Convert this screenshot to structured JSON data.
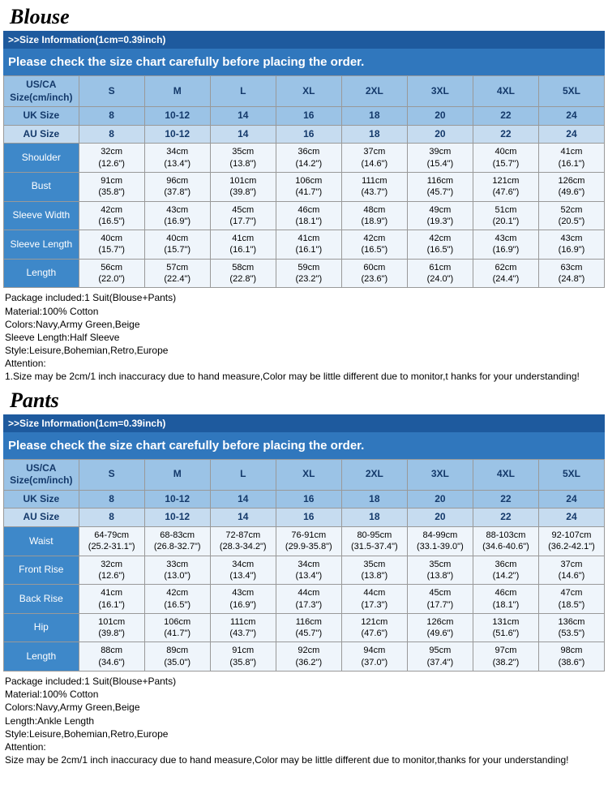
{
  "blouse": {
    "title": "Blouse",
    "info_header": ">>Size Information(1cm=0.39inch)",
    "instruction": "Please check the size chart carefully before placing the order.",
    "header_rows": {
      "usca_label": "US/CA Size(cm/inch)",
      "uk_label": "UK Size",
      "au_label": "AU Size",
      "sizes": [
        "S",
        "M",
        "L",
        "XL",
        "2XL",
        "3XL",
        "4XL",
        "5XL"
      ],
      "uk": [
        "8",
        "10-12",
        "14",
        "16",
        "18",
        "20",
        "22",
        "24"
      ],
      "au": [
        "8",
        "10-12",
        "14",
        "16",
        "18",
        "20",
        "22",
        "24"
      ]
    },
    "measurements": [
      {
        "label": "Shoulder",
        "vals": [
          "32cm (12.6\")",
          "34cm (13.4\")",
          "35cm (13.8\")",
          "36cm (14.2\")",
          "37cm (14.6\")",
          "39cm (15.4\")",
          "40cm (15.7\")",
          "41cm (16.1\")"
        ]
      },
      {
        "label": "Bust",
        "vals": [
          "91cm (35.8\")",
          "96cm (37.8\")",
          "101cm (39.8\")",
          "106cm (41.7\")",
          "111cm (43.7\")",
          "116cm (45.7\")",
          "121cm (47.6\")",
          "126cm (49.6\")"
        ]
      },
      {
        "label": "Sleeve Width",
        "vals": [
          "42cm (16.5\")",
          "43cm (16.9\")",
          "45cm (17.7\")",
          "46cm (18.1\")",
          "48cm (18.9\")",
          "49cm (19.3\")",
          "51cm (20.1\")",
          "52cm (20.5\")"
        ]
      },
      {
        "label": "Sleeve Length",
        "vals": [
          "40cm (15.7\")",
          "40cm (15.7\")",
          "41cm (16.1\")",
          "41cm (16.1\")",
          "42cm (16.5\")",
          "42cm (16.5\")",
          "43cm (16.9\")",
          "43cm (16.9\")"
        ]
      },
      {
        "label": "Length",
        "vals": [
          "56cm (22.0\")",
          "57cm (22.4\")",
          "58cm (22.8\")",
          "59cm (23.2\")",
          "60cm (23.6\")",
          "61cm (24.0\")",
          "62cm (24.4\")",
          "63cm (24.8\")"
        ]
      }
    ],
    "notes": [
      "Package included:1 Suit(Blouse+Pants)",
      "Material:100% Cotton",
      "Colors:Navy,Army Green,Beige",
      "Sleeve Length:Half Sleeve",
      "Style:Leisure,Bohemian,Retro,Europe",
      "Attention:",
      "1.Size may be 2cm/1 inch inaccuracy due to hand measure,Color may be little different due to monitor,t hanks for your understanding!"
    ]
  },
  "pants": {
    "title": "Pants",
    "info_header": ">>Size Information(1cm=0.39inch)",
    "instruction": "Please check the size chart carefully before placing the order.",
    "header_rows": {
      "usca_label": "US/CA Size(cm/inch)",
      "uk_label": "UK Size",
      "au_label": "AU Size",
      "sizes": [
        "S",
        "M",
        "L",
        "XL",
        "2XL",
        "3XL",
        "4XL",
        "5XL"
      ],
      "uk": [
        "8",
        "10-12",
        "14",
        "16",
        "18",
        "20",
        "22",
        "24"
      ],
      "au": [
        "8",
        "10-12",
        "14",
        "16",
        "18",
        "20",
        "22",
        "24"
      ]
    },
    "measurements": [
      {
        "label": "Waist",
        "vals": [
          "64-79cm (25.2-31.1\")",
          "68-83cm (26.8-32.7\")",
          "72-87cm (28.3-34.2\")",
          "76-91cm (29.9-35.8\")",
          "80-95cm (31.5-37.4\")",
          "84-99cm (33.1-39.0\")",
          "88-103cm (34.6-40.6\")",
          "92-107cm (36.2-42.1\")"
        ]
      },
      {
        "label": "Front Rise",
        "vals": [
          "32cm (12.6\")",
          "33cm (13.0\")",
          "34cm (13.4\")",
          "34cm (13.4\")",
          "35cm (13.8\")",
          "35cm (13.8\")",
          "36cm (14.2\")",
          "37cm (14.6\")"
        ]
      },
      {
        "label": "Back Rise",
        "vals": [
          "41cm (16.1\")",
          "42cm (16.5\")",
          "43cm (16.9\")",
          "44cm (17.3\")",
          "44cm (17.3\")",
          "45cm (17.7\")",
          "46cm (18.1\")",
          "47cm (18.5\")"
        ]
      },
      {
        "label": "Hip",
        "vals": [
          "101cm (39.8\")",
          "106cm (41.7\")",
          "111cm (43.7\")",
          "116cm (45.7\")",
          "121cm (47.6\")",
          "126cm (49.6\")",
          "131cm (51.6\")",
          "136cm (53.5\")"
        ]
      },
      {
        "label": "Length",
        "vals": [
          "88cm (34.6\")",
          "89cm (35.0\")",
          "91cm (35.8\")",
          "92cm (36.2\")",
          "94cm (37.0\")",
          "95cm (37.4\")",
          "97cm (38.2\")",
          "98cm (38.6\")"
        ]
      }
    ],
    "notes": [
      "Package included:1 Suit(Blouse+Pants)",
      "Material:100% Cotton",
      "Colors:Navy,Army Green,Beige",
      "Length:Ankle Length",
      "Style:Leisure,Bohemian,Retro,Europe",
      "Attention:",
      "Size may be 2cm/1 inch inaccuracy due to hand measure,Color may be little different due to monitor,thanks for your understanding!"
    ]
  }
}
